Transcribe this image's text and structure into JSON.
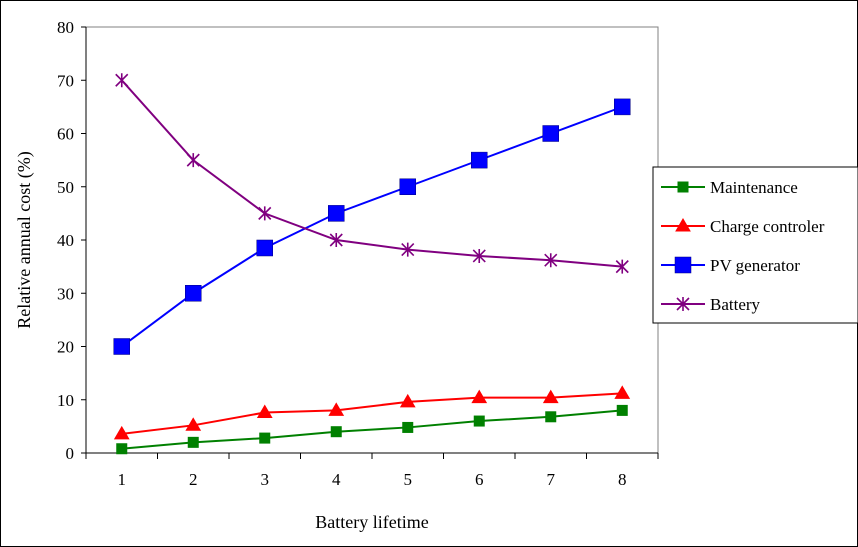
{
  "chart_data": {
    "type": "line",
    "xlabel": "Battery lifetime",
    "ylabel": "Relative annual cost (%)",
    "x": [
      1,
      2,
      3,
      4,
      5,
      6,
      7,
      8
    ],
    "xticks": [
      "1",
      "2",
      "3",
      "4",
      "5",
      "6",
      "7",
      "8"
    ],
    "ylim": [
      0,
      80
    ],
    "yticks": [
      0,
      10,
      20,
      30,
      40,
      50,
      60,
      70,
      80
    ],
    "grid": false,
    "legend_position": "right",
    "series": [
      {
        "name": "Maintenance",
        "color": "#008000",
        "marker": "square-small",
        "values": [
          0.8,
          2.0,
          2.8,
          4.0,
          4.8,
          6.0,
          6.8,
          8.0
        ]
      },
      {
        "name": "Charge controler",
        "color": "#ff0000",
        "marker": "triangle",
        "values": [
          3.6,
          5.2,
          7.6,
          8.0,
          9.6,
          10.4,
          10.4,
          11.2
        ]
      },
      {
        "name": "PV generator",
        "color": "#0000ff",
        "marker": "square-large",
        "values": [
          20,
          30,
          38.5,
          45,
          50,
          55,
          60,
          65
        ]
      },
      {
        "name": "Battery",
        "color": "#800080",
        "marker": "star",
        "values": [
          70,
          55,
          45,
          40,
          38.2,
          37,
          36.2,
          35
        ]
      }
    ]
  }
}
